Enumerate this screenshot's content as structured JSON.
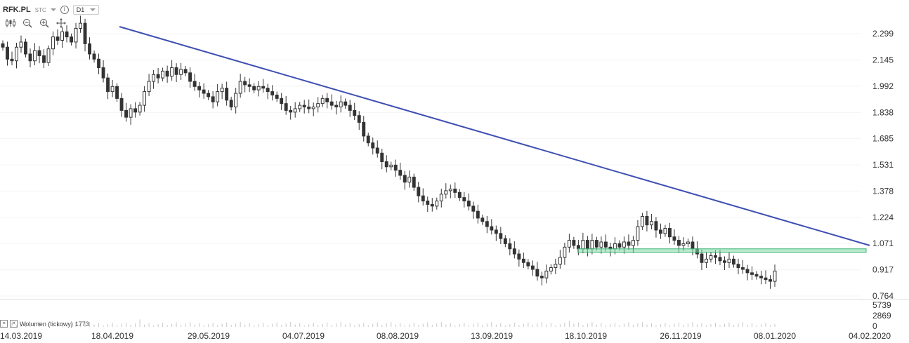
{
  "header": {
    "symbol": "RFK.PL",
    "market": "STC",
    "timeframe": "D1"
  },
  "toolbar": {
    "icons": [
      "candles-icon",
      "zoom-out-icon",
      "zoom-in-icon",
      "move-icon"
    ]
  },
  "volume": {
    "label": "Wolumen (tickowy)",
    "value": "1773",
    "ticks": [
      "5739",
      "2869",
      "0"
    ]
  },
  "colors": {
    "trendline": "#3f4fb2",
    "support_zone": "#7fd8a8",
    "candle": "#333333",
    "grid": "#e6e6e6"
  },
  "chart_data": {
    "type": "candlestick",
    "title": "",
    "y_ticks": [
      "2.299",
      "2.145",
      "1.992",
      "1.838",
      "1.685",
      "1.531",
      "1.378",
      "1.224",
      "1.071",
      "0.917",
      "0.764"
    ],
    "ylim": [
      0.764,
      2.299
    ],
    "x_ticks": [
      "14.03.2019",
      "18.04.2019",
      "29.05.2019",
      "04.07.2019",
      "08.08.2019",
      "13.09.2019",
      "18.10.2019",
      "26.11.2019",
      "08.01.2020",
      "04.02.2020"
    ],
    "x_range": [
      "14.03.2019",
      "04.02.2020"
    ],
    "close": [
      2.22,
      2.15,
      2.14,
      2.22,
      2.25,
      2.18,
      2.14,
      2.2,
      2.17,
      2.13,
      2.21,
      2.28,
      2.26,
      2.31,
      2.28,
      2.25,
      2.33,
      2.36,
      2.24,
      2.18,
      2.15,
      2.1,
      2.04,
      1.96,
      1.99,
      1.92,
      1.85,
      1.81,
      1.86,
      1.84,
      1.88,
      1.96,
      2.02,
      2.06,
      2.04,
      2.08,
      2.05,
      2.1,
      2.06,
      2.09,
      2.07,
      2.02,
      1.99,
      1.97,
      1.95,
      1.93,
      1.9,
      1.96,
      1.98,
      1.91,
      1.87,
      1.95,
      2.02,
      2.0,
      1.99,
      1.97,
      1.99,
      1.98,
      1.96,
      1.94,
      1.92,
      1.89,
      1.85,
      1.84,
      1.86,
      1.88,
      1.87,
      1.86,
      1.87,
      1.89,
      1.92,
      1.9,
      1.88,
      1.87,
      1.9,
      1.88,
      1.85,
      1.82,
      1.78,
      1.7,
      1.66,
      1.63,
      1.6,
      1.55,
      1.52,
      1.53,
      1.5,
      1.47,
      1.43,
      1.46,
      1.4,
      1.35,
      1.32,
      1.3,
      1.29,
      1.32,
      1.36,
      1.38,
      1.39,
      1.37,
      1.34,
      1.32,
      1.29,
      1.26,
      1.22,
      1.2,
      1.17,
      1.15,
      1.13,
      1.1,
      1.07,
      1.04,
      1.01,
      0.98,
      0.96,
      0.94,
      0.92,
      0.88,
      0.87,
      0.91,
      0.93,
      0.95,
      0.99,
      1.05,
      1.09,
      1.06,
      1.04,
      1.09,
      1.04,
      1.09,
      1.05,
      1.08,
      1.05,
      1.04,
      1.07,
      1.05,
      1.08,
      1.06,
      1.09,
      1.17,
      1.23,
      1.18,
      1.2,
      1.15,
      1.13,
      1.16,
      1.11,
      1.09,
      1.06,
      1.07,
      1.08,
      1.04,
      1.01,
      0.96,
      0.98,
      1.0,
      0.99,
      0.97,
      0.96,
      0.98,
      0.95,
      0.93,
      0.92,
      0.9,
      0.89,
      0.88,
      0.87,
      0.86,
      0.85,
      0.91
    ],
    "trendline": {
      "start": {
        "date": "21.04.2019",
        "price": 2.34
      },
      "end": {
        "date": "04.02.2020",
        "price": 1.06
      }
    },
    "support_zone": {
      "from": "15.10.2019",
      "to": "03.02.2020",
      "low": 1.02,
      "high": 1.04
    },
    "volume_max": 5739
  }
}
